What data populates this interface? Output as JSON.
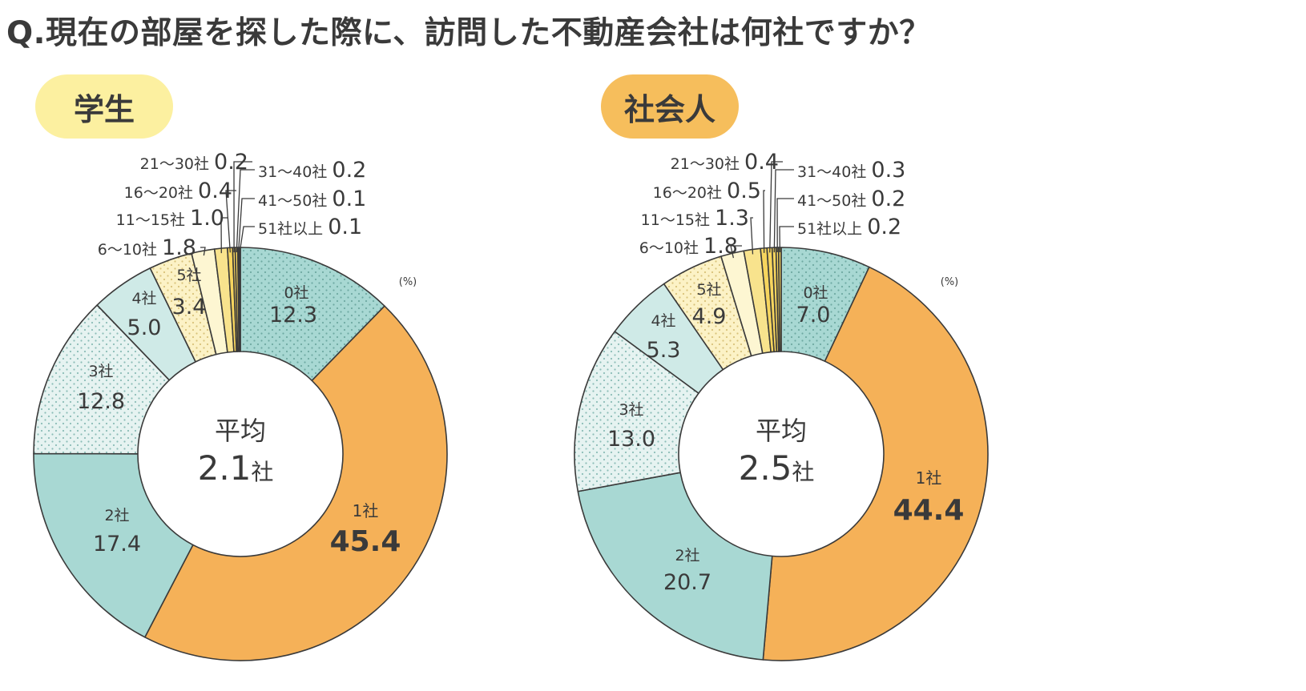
{
  "title": "Q.現在の部屋を探した際に、訪問した不動産会社は何社ですか？",
  "colors": {
    "orange": "#F5B158",
    "teal": "#A8D8D3",
    "teal_dot": "#CFEAE7",
    "light_dot": "#E6F3F1",
    "yellow_dot": "#FCF2C6",
    "yellow_light": "#FDF6D2",
    "yellow": "#F8E38D",
    "yellow_deep": "#F6D55E",
    "badge_student": "#FCF0A0",
    "badge_worker": "#F6BE5C"
  },
  "unit_label": "(%)",
  "chart_data": [
    {
      "type": "pie",
      "title": "学生",
      "center_label": "平均",
      "center_value": "2.1",
      "center_unit": "社",
      "categories": [
        "0社",
        "1社",
        "2社",
        "3社",
        "4社",
        "5社",
        "6〜10社",
        "11〜15社",
        "16〜20社",
        "21〜30社",
        "31〜40社",
        "41〜50社",
        "51社以上"
      ],
      "values": [
        12.3,
        45.4,
        17.4,
        12.8,
        5.0,
        3.4,
        1.8,
        1.0,
        0.4,
        0.2,
        0.2,
        0.1,
        0.1
      ],
      "value_labels": [
        "12.3",
        "45.4",
        "17.4",
        "12.8",
        "5.0",
        "3.4",
        "1.8",
        "1.0",
        "0.4",
        "0.2",
        "0.2",
        "0.1",
        "0.1"
      ]
    },
    {
      "type": "pie",
      "title": "社会人",
      "center_label": "平均",
      "center_value": "2.5",
      "center_unit": "社",
      "categories": [
        "0社",
        "1社",
        "2社",
        "3社",
        "4社",
        "5社",
        "6〜10社",
        "11〜15社",
        "16〜20社",
        "21〜30社",
        "31〜40社",
        "41〜50社",
        "51社以上"
      ],
      "values": [
        7.0,
        44.4,
        20.7,
        13.0,
        5.3,
        4.9,
        1.8,
        1.3,
        0.5,
        0.4,
        0.3,
        0.2,
        0.2
      ],
      "value_labels": [
        "7.0",
        "44.4",
        "20.7",
        "13.0",
        "5.3",
        "4.9",
        "1.8",
        "1.3",
        "0.5",
        "0.4",
        "0.3",
        "0.2",
        "0.2"
      ]
    }
  ]
}
